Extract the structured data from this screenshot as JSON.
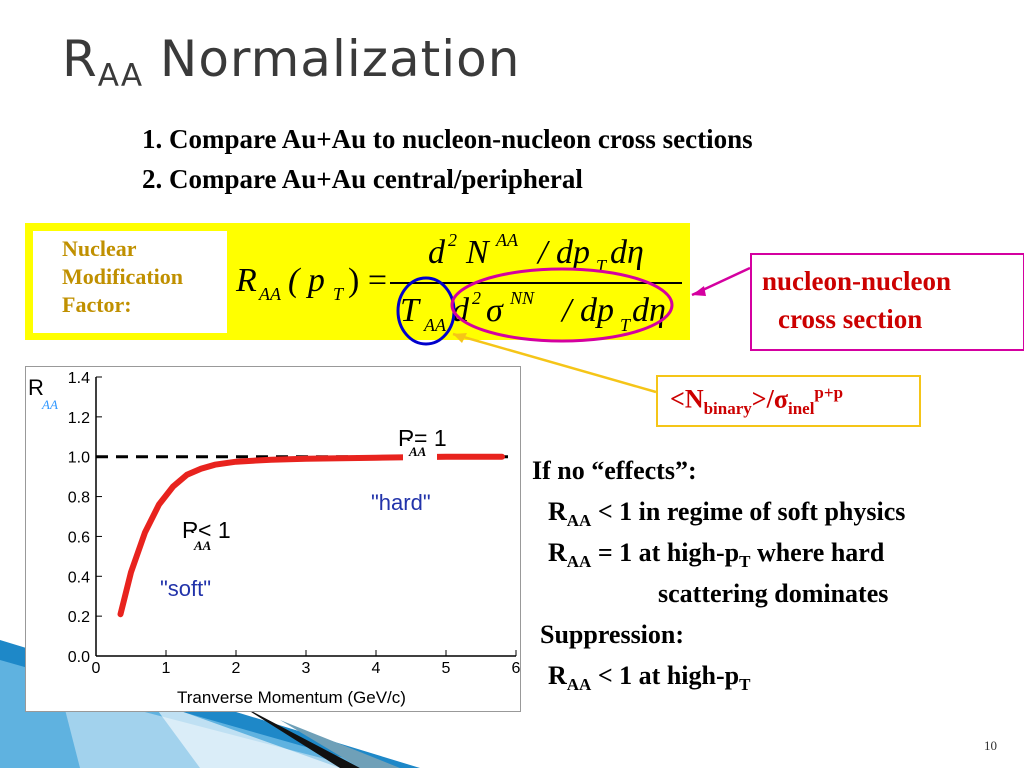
{
  "title": {
    "main": "R",
    "sub": "AA",
    "rest": " Normalization"
  },
  "intro": {
    "line1": "1. Compare Au+Au to nucleon-nucleon cross sections",
    "line2": "2. Compare Au+Au central/peripheral"
  },
  "formula_label": {
    "line1": "Nuclear",
    "line2": "Modification",
    "line3": "Factor:"
  },
  "formula": {
    "lhs_R": "R",
    "lhs_sub": "AA",
    "lhs_arg": "( p",
    "lhs_arg_sub": "T",
    "lhs_close": ") =",
    "num_d": "d",
    "num_sup2": "2",
    "num_N": "N",
    "num_supAA": "AA",
    "num_rest": "/ dp",
    "num_subT": "T",
    "num_deta": "dη",
    "den_T": "T",
    "den_subAA": "AA",
    "den_d": "d",
    "den_sup2": "2",
    "den_sigma": "σ",
    "den_supNN": "NN",
    "den_rest": "/ dp",
    "den_subT": "T",
    "den_deta": "dη"
  },
  "annotations": {
    "nn_line1": "nucleon-nucleon",
    "nn_line2": "cross section",
    "nbin_open": "<N",
    "nbin_sub": "binary",
    "nbin_mid": ">/σ",
    "nbin_sub2": "inel",
    "nbin_sup": "p+p"
  },
  "colors": {
    "yellow": "#ffff00",
    "magenta": "#d400a0",
    "red_text": "#cc0000",
    "curve": "#e8231e",
    "blue_circle": "#0000cc",
    "arrow_gold": "#f5c518"
  },
  "chart_data": {
    "type": "line",
    "xlabel": "Tranverse Momentum (GeV/c)",
    "ylabel_main": "R",
    "ylabel_sub": "AA",
    "xlim": [
      0,
      6
    ],
    "ylim": [
      0,
      1.4
    ],
    "x_ticks": [
      "0",
      "1",
      "2",
      "3",
      "4",
      "5",
      "6"
    ],
    "y_ticks": [
      "0.0",
      "0.2",
      "0.4",
      "0.6",
      "0.8",
      "1.0",
      "1.2",
      "1.4"
    ],
    "reference_line": 1.0,
    "series": [
      {
        "x": [
          0.35,
          0.5,
          0.7,
          0.9,
          1.1,
          1.3,
          1.5,
          1.7,
          2.0,
          2.5,
          3.0,
          4.0,
          5.0,
          5.8
        ],
        "y": [
          0.21,
          0.42,
          0.62,
          0.76,
          0.85,
          0.91,
          0.94,
          0.96,
          0.975,
          0.985,
          0.99,
          0.995,
          1.0,
          1.0
        ]
      }
    ],
    "annotations": [
      {
        "text": "R",
        "sub": "AA",
        "rest": " = 1"
      },
      {
        "text": "\"hard\""
      },
      {
        "text": "R",
        "sub": "AA",
        "rest": " < 1"
      },
      {
        "text": "\"soft\""
      }
    ]
  },
  "explanation": {
    "if_no_effects": "If no “effects”:",
    "l1_R": "R",
    "l1_sub": "AA",
    "l1_rest": " < 1 in regime of soft physics",
    "l2_R": "R",
    "l2_sub": "AA",
    "l2_mid": " = 1 at high-p",
    "l2_subT": "T",
    "l2_rest": " where hard",
    "l3": "scattering dominates",
    "suppression": "Suppression:",
    "l4_R": "R",
    "l4_sub": "AA",
    "l4_mid": " < 1 at high-p",
    "l4_subT": "T"
  },
  "page_number": "10"
}
